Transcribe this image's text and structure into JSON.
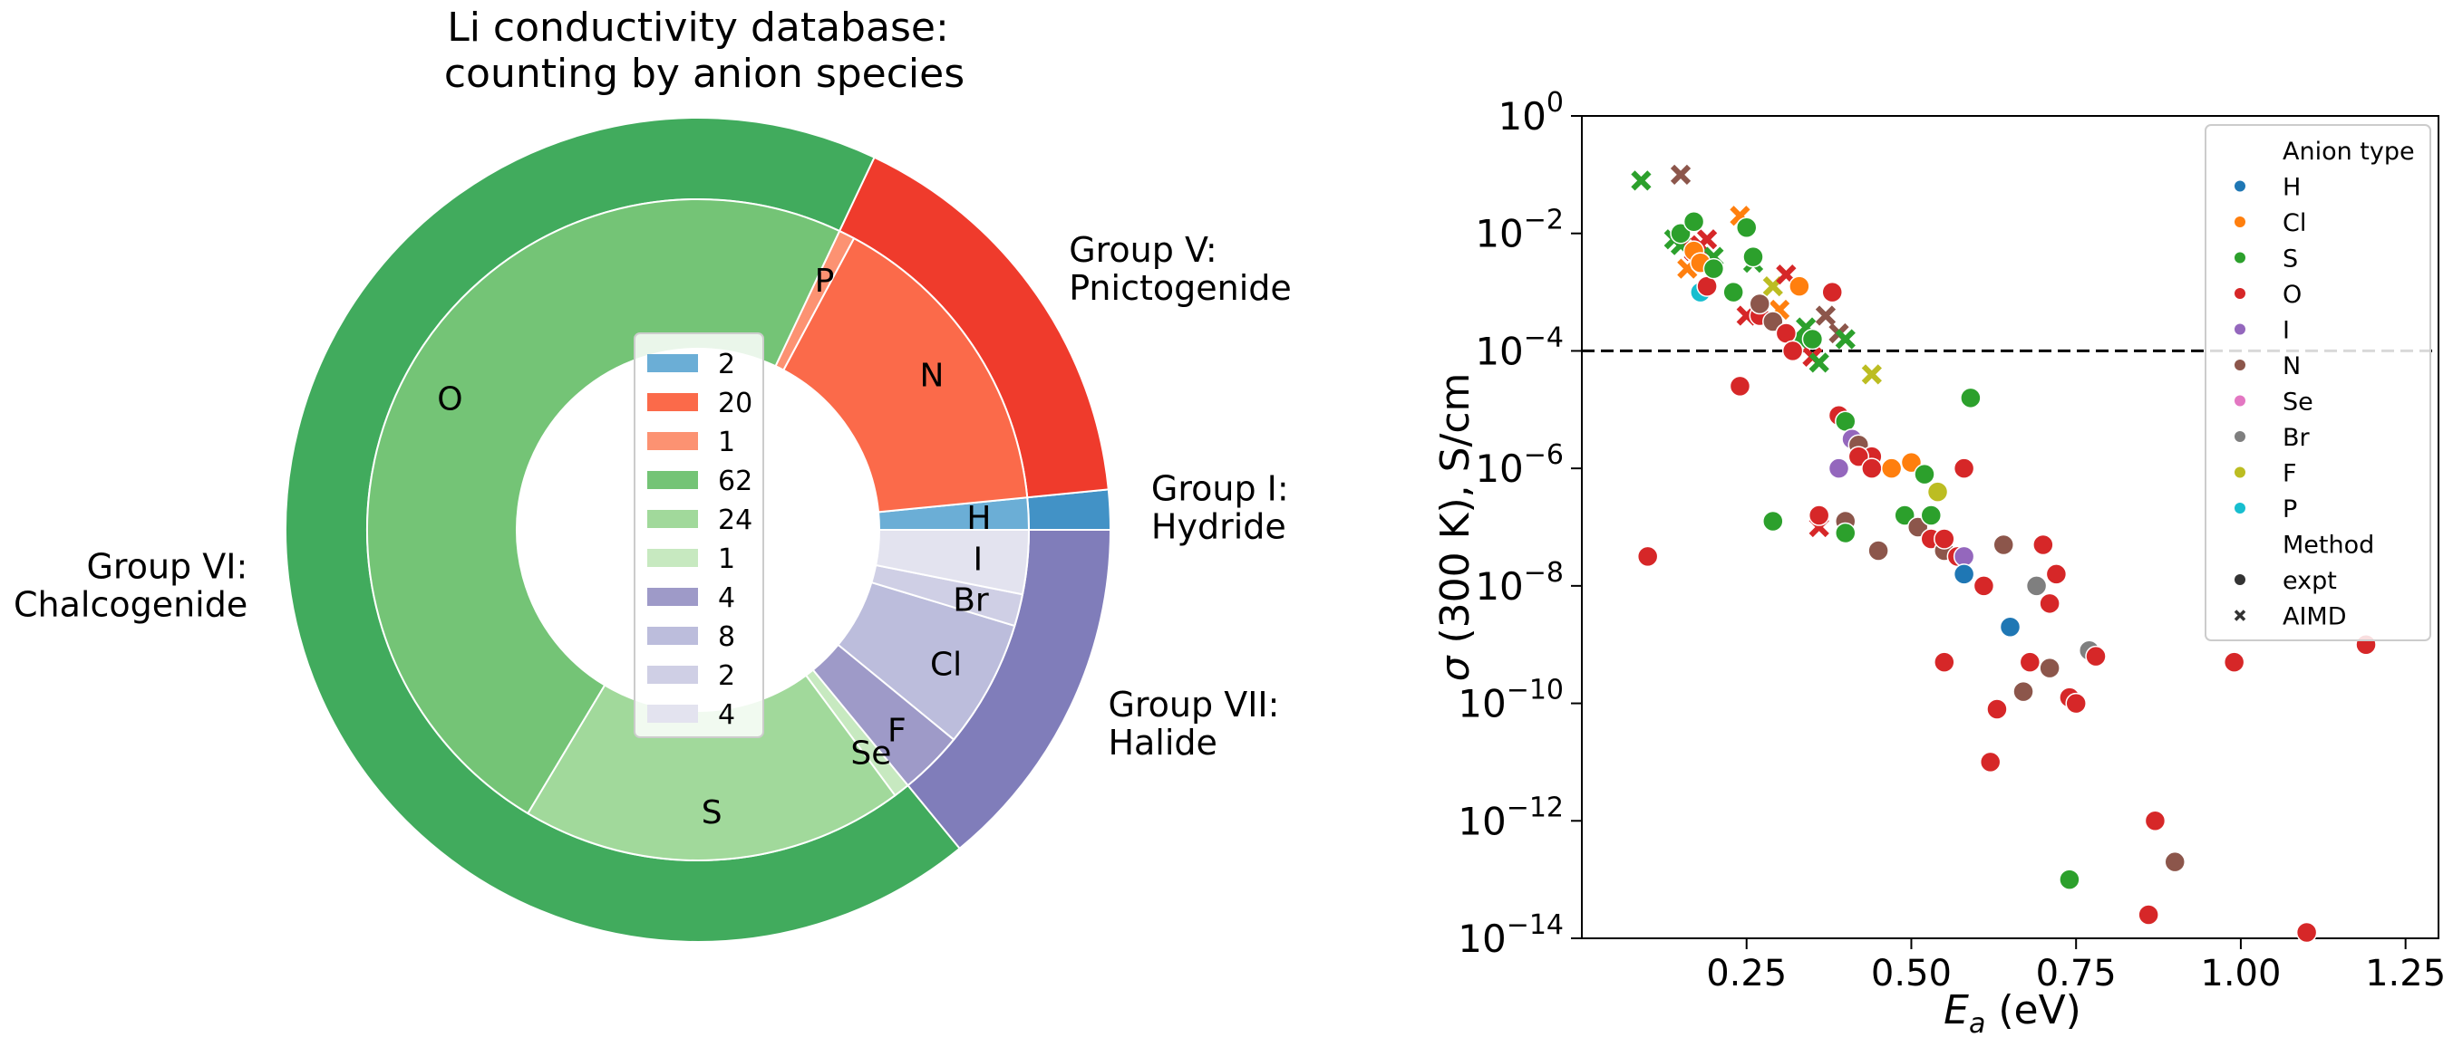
{
  "chart_data": [
    {
      "type": "pie",
      "variant": "nested-donut",
      "title_lines": [
        "Li conductivity database:",
        "counting by anion species"
      ],
      "outer": [
        {
          "label": "Group I:\nHydride",
          "value": 2,
          "color": "#4292c6"
        },
        {
          "label": "Group V:\nPnictogenide",
          "value": 21,
          "color": "#ef3b2c"
        },
        {
          "label": "Group VI:\nChalcogenide",
          "value": 87,
          "color": "#41ab5d"
        },
        {
          "label": "Group VII:\nHalide",
          "value": 18,
          "color": "#807dba"
        }
      ],
      "inner": [
        {
          "label": "H",
          "value": 2,
          "color": "#6baed6"
        },
        {
          "label": "N",
          "value": 20,
          "color": "#fb6a4a"
        },
        {
          "label": "P",
          "value": 1,
          "color": "#fc9272"
        },
        {
          "label": "O",
          "value": 62,
          "color": "#74c476"
        },
        {
          "label": "S",
          "value": 24,
          "color": "#a1d99b"
        },
        {
          "label": "Se",
          "value": 1,
          "color": "#c7e9c0"
        },
        {
          "label": "F",
          "value": 4,
          "color": "#9e9ac8"
        },
        {
          "label": "Cl",
          "value": 8,
          "color": "#bcbddc"
        },
        {
          "label": "Br",
          "value": 2,
          "color": "#cfcfe5"
        },
        {
          "label": "I",
          "value": 4,
          "color": "#e3e3ef"
        }
      ],
      "legend_entries": [
        "2",
        "20",
        "1",
        "62",
        "24",
        "1",
        "4",
        "8",
        "2",
        "4"
      ],
      "legend_position": "center"
    },
    {
      "type": "scatter",
      "xlabel": "E_a (eV)",
      "ylabel": "σ (300 K), S/cm",
      "xlim": [
        0.0,
        1.3
      ],
      "ylim_log10": [
        -14,
        0
      ],
      "yscale": "log",
      "x_ticks": [
        "0.25",
        "0.50",
        "0.75",
        "1.00",
        "1.25"
      ],
      "y_ticks": [
        "10^0",
        "10^-2",
        "10^-4",
        "10^-6",
        "10^-8",
        "10^-10",
        "10^-12",
        "10^-14"
      ],
      "threshold_log10": -4,
      "grid": false,
      "legend_position": "top-right",
      "legend": {
        "hue_title": "Anion type",
        "hue": [
          {
            "name": "H",
            "color": "#1f77b4"
          },
          {
            "name": "Cl",
            "color": "#ff7f0e"
          },
          {
            "name": "S",
            "color": "#2ca02c"
          },
          {
            "name": "O",
            "color": "#d62728"
          },
          {
            "name": "I",
            "color": "#9467bd"
          },
          {
            "name": "N",
            "color": "#8c564b"
          },
          {
            "name": "Se",
            "color": "#e377c2"
          },
          {
            "name": "Br",
            "color": "#7f7f7f"
          },
          {
            "name": "F",
            "color": "#bcbd22"
          },
          {
            "name": "P",
            "color": "#17becf"
          }
        ],
        "style_title": "Method",
        "style": [
          {
            "name": "expt",
            "marker": "circle"
          },
          {
            "name": "AIMD",
            "marker": "x"
          }
        ]
      },
      "points": [
        {
          "x": 0.09,
          "y": -1.1,
          "anion": "S",
          "method": "AIMD"
        },
        {
          "x": 0.15,
          "y": -1.0,
          "anion": "N",
          "method": "AIMD"
        },
        {
          "x": 0.14,
          "y": -2.1,
          "anion": "S",
          "method": "AIMD"
        },
        {
          "x": 0.15,
          "y": -2.2,
          "anion": "S",
          "method": "AIMD"
        },
        {
          "x": 0.17,
          "y": -2.3,
          "anion": "O",
          "method": "AIMD"
        },
        {
          "x": 0.18,
          "y": -2.2,
          "anion": "O",
          "method": "AIMD"
        },
        {
          "x": 0.19,
          "y": -2.1,
          "anion": "O",
          "method": "AIMD"
        },
        {
          "x": 0.2,
          "y": -2.4,
          "anion": "S",
          "method": "AIMD"
        },
        {
          "x": 0.16,
          "y": -2.6,
          "anion": "Cl",
          "method": "AIMD"
        },
        {
          "x": 0.24,
          "y": -1.7,
          "anion": "Cl",
          "method": "AIMD"
        },
        {
          "x": 0.25,
          "y": -3.4,
          "anion": "O",
          "method": "AIMD"
        },
        {
          "x": 0.26,
          "y": -2.5,
          "anion": "S",
          "method": "AIMD"
        },
        {
          "x": 0.29,
          "y": -2.9,
          "anion": "F",
          "method": "AIMD"
        },
        {
          "x": 0.3,
          "y": -3.3,
          "anion": "Cl",
          "method": "AIMD"
        },
        {
          "x": 0.31,
          "y": -2.7,
          "anion": "O",
          "method": "AIMD"
        },
        {
          "x": 0.33,
          "y": -3.8,
          "anion": "S",
          "method": "AIMD"
        },
        {
          "x": 0.34,
          "y": -3.6,
          "anion": "S",
          "method": "AIMD"
        },
        {
          "x": 0.35,
          "y": -4.1,
          "anion": "O",
          "method": "AIMD"
        },
        {
          "x": 0.36,
          "y": -4.2,
          "anion": "S",
          "method": "AIMD"
        },
        {
          "x": 0.37,
          "y": -3.4,
          "anion": "N",
          "method": "AIMD"
        },
        {
          "x": 0.39,
          "y": -3.7,
          "anion": "N",
          "method": "AIMD"
        },
        {
          "x": 0.4,
          "y": -3.8,
          "anion": "S",
          "method": "AIMD"
        },
        {
          "x": 0.44,
          "y": -4.4,
          "anion": "F",
          "method": "AIMD"
        },
        {
          "x": 0.36,
          "y": -7.0,
          "anion": "O",
          "method": "AIMD"
        },
        {
          "x": 0.15,
          "y": -2.0,
          "anion": "S",
          "method": "expt"
        },
        {
          "x": 0.17,
          "y": -1.8,
          "anion": "S",
          "method": "expt"
        },
        {
          "x": 0.17,
          "y": -2.3,
          "anion": "Cl",
          "method": "expt"
        },
        {
          "x": 0.18,
          "y": -2.5,
          "anion": "Cl",
          "method": "expt"
        },
        {
          "x": 0.18,
          "y": -3.0,
          "anion": "P",
          "method": "expt"
        },
        {
          "x": 0.19,
          "y": -2.9,
          "anion": "O",
          "method": "expt"
        },
        {
          "x": 0.2,
          "y": -2.6,
          "anion": "S",
          "method": "expt"
        },
        {
          "x": 0.23,
          "y": -3.0,
          "anion": "S",
          "method": "expt"
        },
        {
          "x": 0.25,
          "y": -1.9,
          "anion": "S",
          "method": "expt"
        },
        {
          "x": 0.26,
          "y": -2.4,
          "anion": "S",
          "method": "expt"
        },
        {
          "x": 0.27,
          "y": -3.4,
          "anion": "O",
          "method": "expt"
        },
        {
          "x": 0.27,
          "y": -3.2,
          "anion": "N",
          "method": "expt"
        },
        {
          "x": 0.29,
          "y": -3.5,
          "anion": "N",
          "method": "expt"
        },
        {
          "x": 0.31,
          "y": -3.7,
          "anion": "O",
          "method": "expt"
        },
        {
          "x": 0.32,
          "y": -4.0,
          "anion": "O",
          "method": "expt"
        },
        {
          "x": 0.33,
          "y": -2.9,
          "anion": "Cl",
          "method": "expt"
        },
        {
          "x": 0.35,
          "y": -3.8,
          "anion": "S",
          "method": "expt"
        },
        {
          "x": 0.38,
          "y": -3.0,
          "anion": "O",
          "method": "expt"
        },
        {
          "x": 0.24,
          "y": -4.6,
          "anion": "O",
          "method": "expt"
        },
        {
          "x": 0.39,
          "y": -5.1,
          "anion": "O",
          "method": "expt"
        },
        {
          "x": 0.4,
          "y": -5.2,
          "anion": "S",
          "method": "expt"
        },
        {
          "x": 0.41,
          "y": -5.5,
          "anion": "I",
          "method": "expt"
        },
        {
          "x": 0.42,
          "y": -5.6,
          "anion": "N",
          "method": "expt"
        },
        {
          "x": 0.44,
          "y": -5.8,
          "anion": "O",
          "method": "expt"
        },
        {
          "x": 0.39,
          "y": -6.0,
          "anion": "I",
          "method": "expt"
        },
        {
          "x": 0.42,
          "y": -5.8,
          "anion": "O",
          "method": "expt"
        },
        {
          "x": 0.44,
          "y": -6.0,
          "anion": "O",
          "method": "expt"
        },
        {
          "x": 0.47,
          "y": -6.0,
          "anion": "Cl",
          "method": "expt"
        },
        {
          "x": 0.5,
          "y": -5.9,
          "anion": "Cl",
          "method": "expt"
        },
        {
          "x": 0.52,
          "y": -6.1,
          "anion": "S",
          "method": "expt"
        },
        {
          "x": 0.54,
          "y": -6.4,
          "anion": "F",
          "method": "expt"
        },
        {
          "x": 0.58,
          "y": -6.0,
          "anion": "O",
          "method": "expt"
        },
        {
          "x": 0.59,
          "y": -4.8,
          "anion": "S",
          "method": "expt"
        },
        {
          "x": 0.29,
          "y": -6.9,
          "anion": "S",
          "method": "expt"
        },
        {
          "x": 0.36,
          "y": -6.8,
          "anion": "O",
          "method": "expt"
        },
        {
          "x": 0.4,
          "y": -6.9,
          "anion": "N",
          "method": "expt"
        },
        {
          "x": 0.4,
          "y": -7.1,
          "anion": "S",
          "method": "expt"
        },
        {
          "x": 0.45,
          "y": -7.4,
          "anion": "N",
          "method": "expt"
        },
        {
          "x": 0.49,
          "y": -6.8,
          "anion": "S",
          "method": "expt"
        },
        {
          "x": 0.51,
          "y": -7.0,
          "anion": "N",
          "method": "expt"
        },
        {
          "x": 0.53,
          "y": -6.8,
          "anion": "S",
          "method": "expt"
        },
        {
          "x": 0.53,
          "y": -7.2,
          "anion": "O",
          "method": "expt"
        },
        {
          "x": 0.55,
          "y": -7.4,
          "anion": "N",
          "method": "expt"
        },
        {
          "x": 0.55,
          "y": -7.2,
          "anion": "O",
          "method": "expt"
        },
        {
          "x": 0.57,
          "y": -7.5,
          "anion": "O",
          "method": "expt"
        },
        {
          "x": 0.58,
          "y": -7.5,
          "anion": "I",
          "method": "expt"
        },
        {
          "x": 0.58,
          "y": -7.8,
          "anion": "H",
          "method": "expt"
        },
        {
          "x": 0.61,
          "y": -8.0,
          "anion": "O",
          "method": "expt"
        },
        {
          "x": 0.64,
          "y": -7.3,
          "anion": "N",
          "method": "expt"
        },
        {
          "x": 0.7,
          "y": -7.3,
          "anion": "O",
          "method": "expt"
        },
        {
          "x": 0.72,
          "y": -7.8,
          "anion": "O",
          "method": "expt"
        },
        {
          "x": 0.69,
          "y": -8.0,
          "anion": "Br",
          "method": "expt"
        },
        {
          "x": 0.71,
          "y": -8.3,
          "anion": "O",
          "method": "expt"
        },
        {
          "x": 0.65,
          "y": -8.7,
          "anion": "H",
          "method": "expt"
        },
        {
          "x": 0.1,
          "y": -7.5,
          "anion": "O",
          "method": "expt"
        },
        {
          "x": 0.55,
          "y": -9.3,
          "anion": "O",
          "method": "expt"
        },
        {
          "x": 0.68,
          "y": -9.3,
          "anion": "O",
          "method": "expt"
        },
        {
          "x": 0.71,
          "y": -9.4,
          "anion": "N",
          "method": "expt"
        },
        {
          "x": 0.67,
          "y": -9.8,
          "anion": "N",
          "method": "expt"
        },
        {
          "x": 0.74,
          "y": -9.9,
          "anion": "O",
          "method": "expt"
        },
        {
          "x": 0.75,
          "y": -10.0,
          "anion": "O",
          "method": "expt"
        },
        {
          "x": 0.77,
          "y": -9.1,
          "anion": "Br",
          "method": "expt"
        },
        {
          "x": 0.78,
          "y": -9.2,
          "anion": "O",
          "method": "expt"
        },
        {
          "x": 0.63,
          "y": -10.1,
          "anion": "O",
          "method": "expt"
        },
        {
          "x": 0.62,
          "y": -11.0,
          "anion": "O",
          "method": "expt"
        },
        {
          "x": 0.99,
          "y": -9.3,
          "anion": "O",
          "method": "expt"
        },
        {
          "x": 1.19,
          "y": -9.0,
          "anion": "O",
          "method": "expt"
        },
        {
          "x": 0.87,
          "y": -12.0,
          "anion": "O",
          "method": "expt"
        },
        {
          "x": 0.9,
          "y": -12.7,
          "anion": "N",
          "method": "expt"
        },
        {
          "x": 0.74,
          "y": -13.0,
          "anion": "S",
          "method": "expt"
        },
        {
          "x": 0.86,
          "y": -13.6,
          "anion": "O",
          "method": "expt"
        },
        {
          "x": 1.1,
          "y": -13.9,
          "anion": "O",
          "method": "expt"
        }
      ]
    }
  ]
}
